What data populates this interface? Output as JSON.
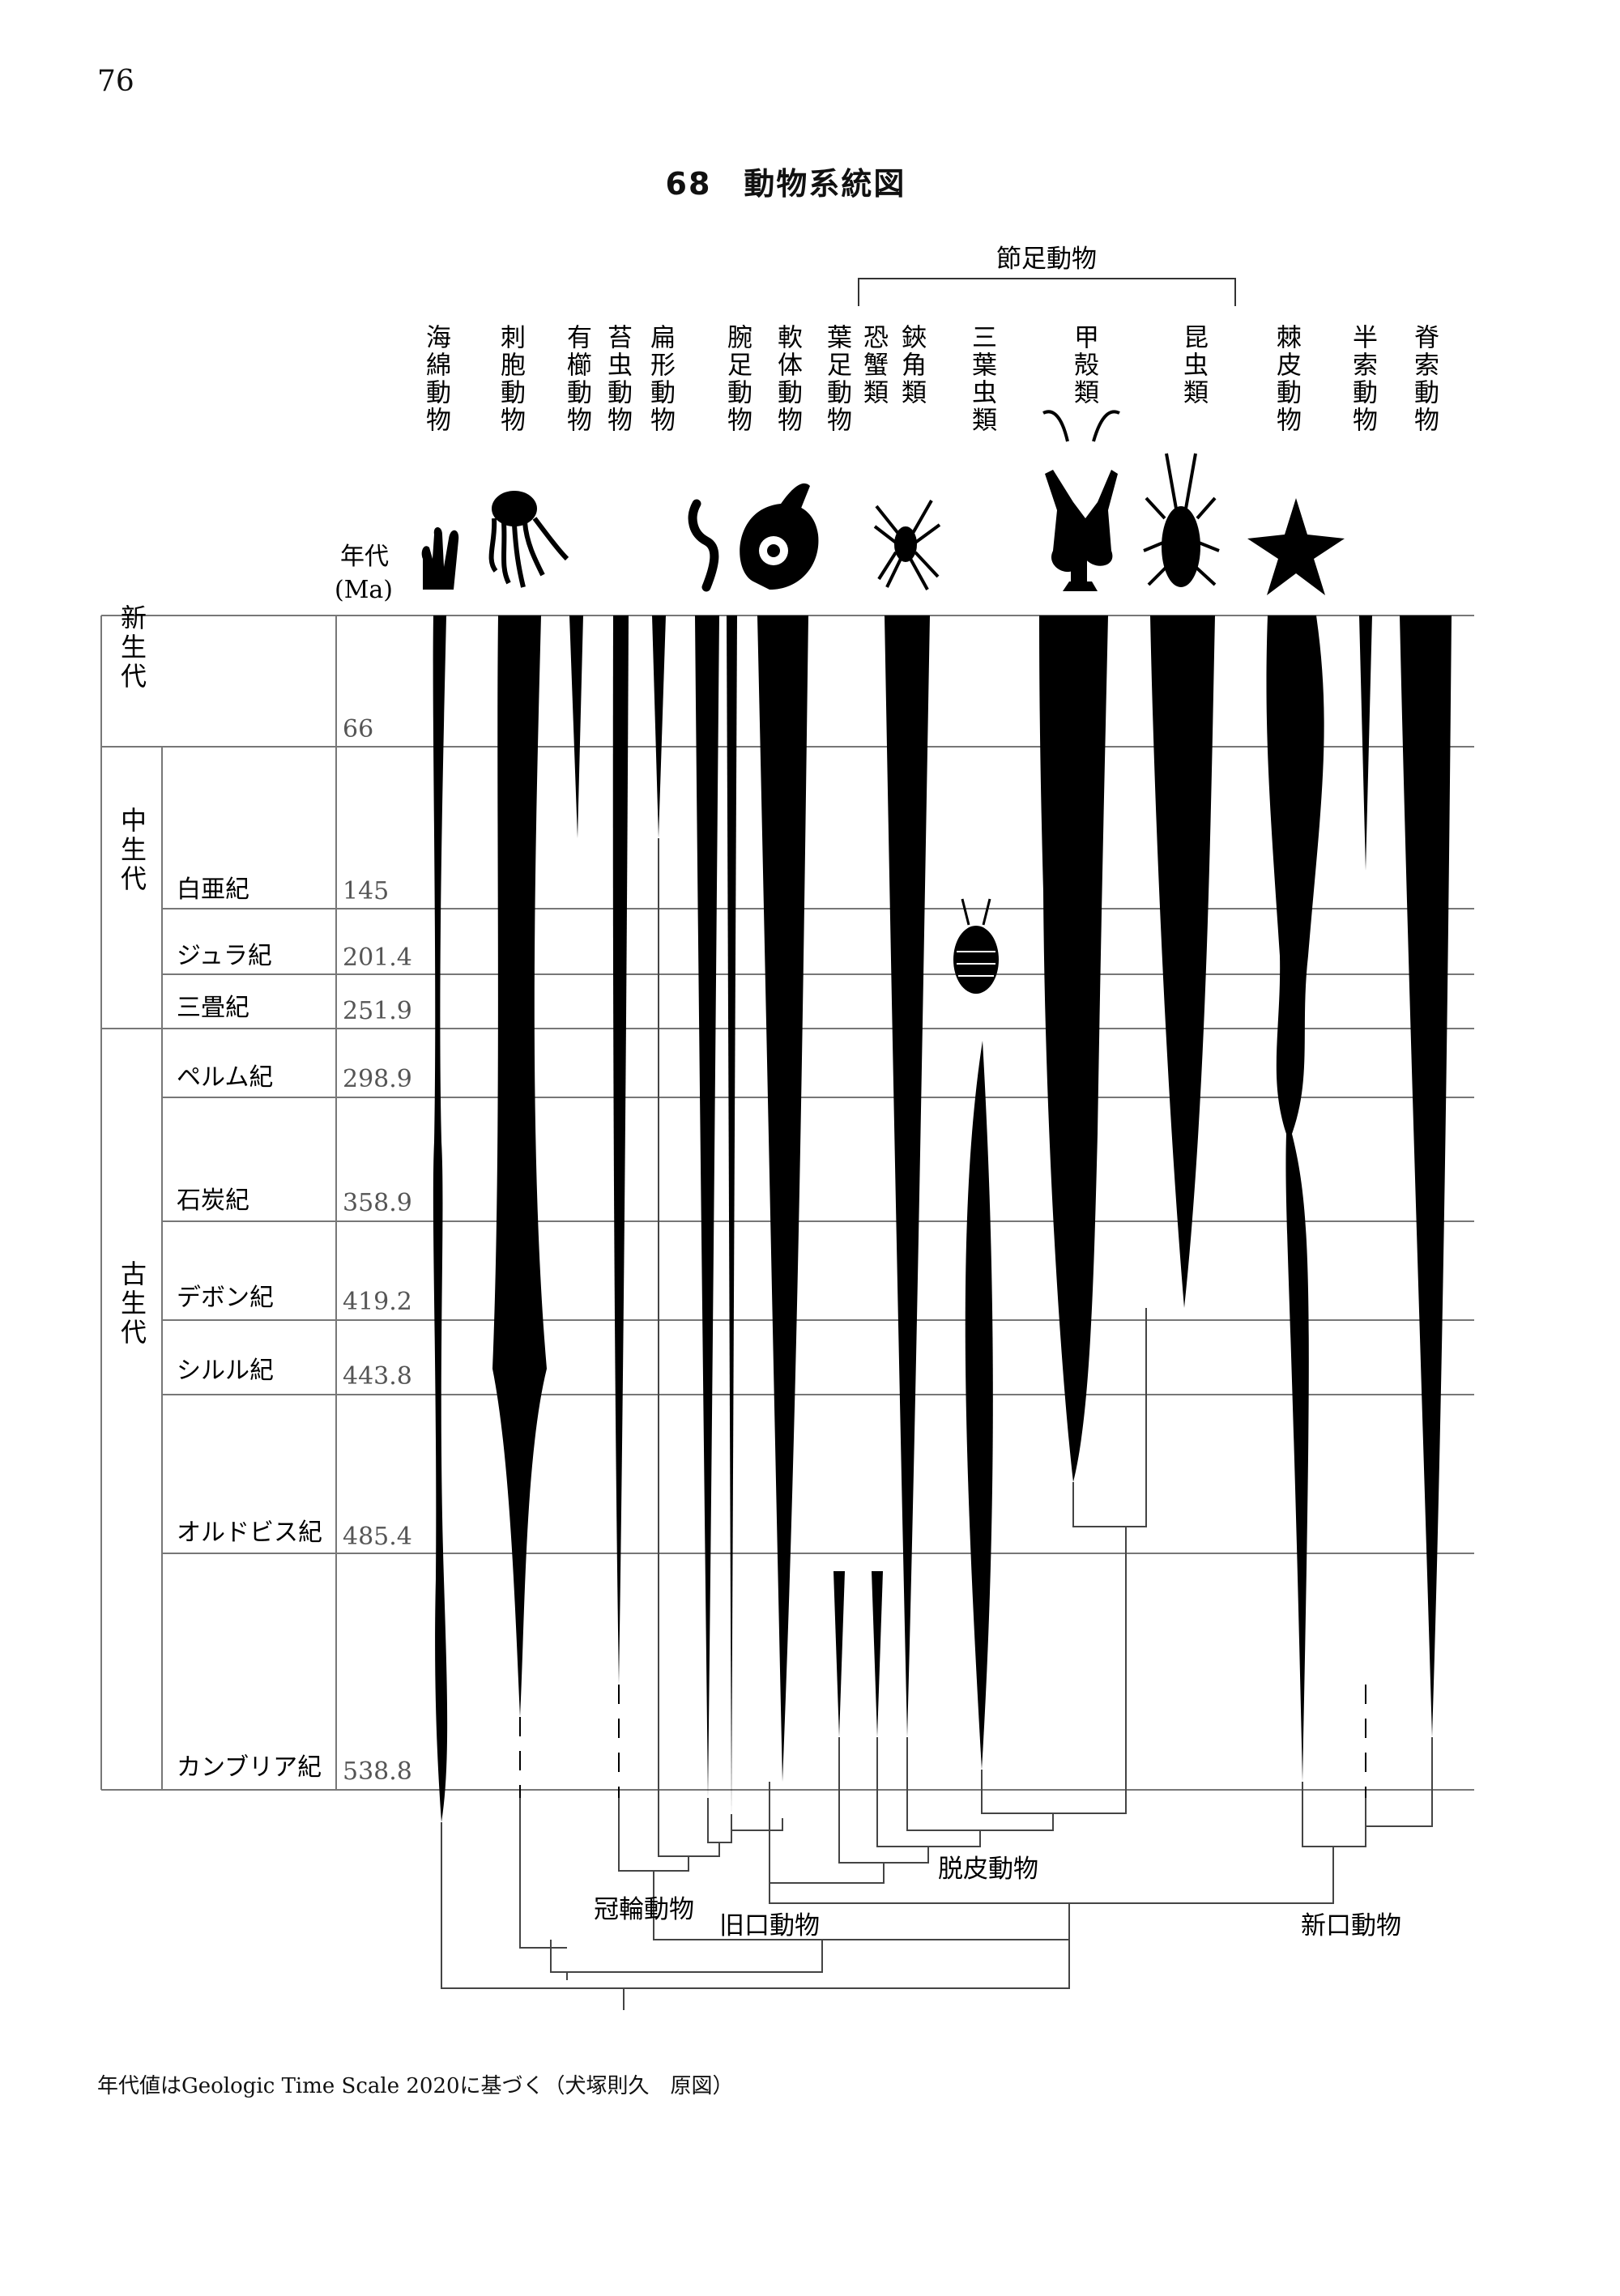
{
  "page": {
    "number": "76"
  },
  "figure": {
    "title": "68　動物系統図",
    "caption": "年代値はGeologic Time Scale 2020に基づく（犬塚則久　原図）"
  },
  "axis": {
    "header_line1": "年代",
    "header_line2": "(Ma)"
  },
  "eras": [
    {
      "id": "cenozoic",
      "label": "新生代"
    },
    {
      "id": "mesozoic",
      "label": "中生代"
    },
    {
      "id": "paleozoic",
      "label": "古生代"
    }
  ],
  "periods": [
    {
      "label": "",
      "boundary": "66"
    },
    {
      "label": "白亜紀",
      "boundary": "145"
    },
    {
      "label": "ジュラ紀",
      "boundary": "201.4"
    },
    {
      "label": "三畳紀",
      "boundary": "251.9"
    },
    {
      "label": "ペルム紀",
      "boundary": "298.9"
    },
    {
      "label": "石炭紀",
      "boundary": "358.9"
    },
    {
      "label": "デボン紀",
      "boundary": "419.2"
    },
    {
      "label": "シルル紀",
      "boundary": "443.8"
    },
    {
      "label": "オルドビス紀",
      "boundary": "485.4"
    },
    {
      "label": "カンブリア紀",
      "boundary": "538.8"
    }
  ],
  "taxa": [
    {
      "label": "海綿動物",
      "icon": "sponge-icon"
    },
    {
      "label": "刺胞動物",
      "icon": "jellyfish-icon"
    },
    {
      "label": "有櫛動物",
      "icon": ""
    },
    {
      "label": "苔虫動物",
      "icon": ""
    },
    {
      "label": "扁形動物",
      "icon": ""
    },
    {
      "label": "腕足動物",
      "icon": "worm-icon"
    },
    {
      "label": "軟体動物",
      "icon": "snail-icon"
    },
    {
      "label": "葉足動物",
      "icon": ""
    },
    {
      "label": "恐蟹類",
      "icon": ""
    },
    {
      "label": "鋏角類",
      "icon": "spider-icon"
    },
    {
      "label": "三葉虫類",
      "icon": "trilobite-icon"
    },
    {
      "label": "甲殻類",
      "icon": "crayfish-icon"
    },
    {
      "label": "昆虫類",
      "icon": "insect-icon"
    },
    {
      "label": "棘皮動物",
      "icon": "starfish-icon"
    },
    {
      "label": "半索動物",
      "icon": ""
    },
    {
      "label": "脊索動物",
      "icon": ""
    }
  ],
  "groups": {
    "arthropods": "節足動物",
    "ecdysozoa": "脱皮動物",
    "lophotrochozoa": "冠輪動物",
    "protostomes": "旧口動物",
    "deuterostomes": "新口動物"
  }
}
